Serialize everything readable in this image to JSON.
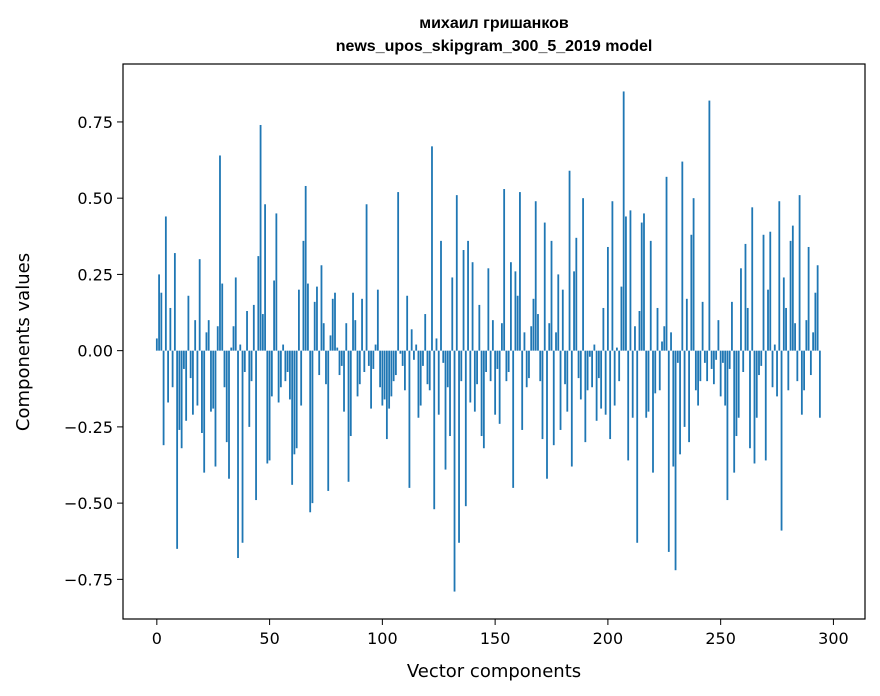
{
  "chart_data": {
    "type": "bar",
    "title": "михаил гришанков",
    "subtitle": "news_upos_skipgram_300_5_2019 model",
    "xlabel": "Vector components",
    "ylabel": "Components values",
    "xlim": [
      -15,
      314
    ],
    "ylim": [
      -0.88,
      0.94
    ],
    "xticks": [
      0,
      50,
      100,
      150,
      200,
      250,
      300
    ],
    "xtick_labels": [
      "0",
      "50",
      "100",
      "150",
      "200",
      "250",
      "300"
    ],
    "yticks": [
      -0.75,
      -0.5,
      -0.25,
      0.0,
      0.25,
      0.5,
      0.75
    ],
    "ytick_labels": [
      "−0.75",
      "−0.50",
      "−0.25",
      "0.00",
      "0.25",
      "0.50",
      "0.75"
    ],
    "bar_color": "#1f77b4",
    "values": [
      0.04,
      0.25,
      0.19,
      -0.31,
      0.44,
      -0.17,
      0.14,
      -0.12,
      0.32,
      -0.65,
      -0.26,
      -0.32,
      -0.06,
      -0.23,
      0.18,
      -0.09,
      -0.21,
      0.1,
      -0.18,
      0.3,
      -0.27,
      -0.4,
      0.06,
      0.1,
      -0.2,
      -0.19,
      -0.38,
      0.08,
      0.64,
      0.22,
      -0.12,
      -0.3,
      -0.42,
      0.01,
      0.08,
      0.24,
      -0.68,
      0.02,
      -0.63,
      -0.07,
      0.13,
      -0.25,
      -0.1,
      0.15,
      -0.49,
      0.31,
      0.74,
      0.12,
      0.48,
      -0.37,
      -0.36,
      -0.15,
      0.23,
      0.45,
      -0.17,
      -0.12,
      0.02,
      -0.1,
      -0.07,
      -0.16,
      -0.44,
      -0.34,
      -0.32,
      0.2,
      -0.18,
      0.36,
      0.54,
      0.22,
      -0.53,
      -0.5,
      0.16,
      0.21,
      -0.08,
      0.28,
      0.09,
      -0.11,
      -0.46,
      0.05,
      0.17,
      0.19,
      0.01,
      -0.08,
      -0.05,
      -0.2,
      0.09,
      -0.43,
      -0.28,
      0.19,
      0.1,
      -0.15,
      -0.11,
      0.17,
      -0.07,
      0.48,
      -0.05,
      -0.19,
      -0.06,
      0.02,
      0.2,
      -0.12,
      -0.18,
      -0.16,
      -0.29,
      -0.19,
      -0.15,
      -0.1,
      -0.08,
      0.52,
      -0.01,
      -0.05,
      -0.13,
      0.18,
      -0.45,
      0.07,
      -0.03,
      0.02,
      -0.22,
      -0.18,
      -0.05,
      0.12,
      -0.11,
      -0.13,
      0.67,
      -0.52,
      0.04,
      -0.21,
      0.36,
      -0.04,
      -0.39,
      -0.12,
      -0.28,
      0.24,
      -0.79,
      0.51,
      -0.63,
      -0.1,
      0.33,
      -0.51,
      0.36,
      -0.17,
      0.29,
      -0.2,
      -0.11,
      0.15,
      -0.28,
      -0.32,
      -0.07,
      0.27,
      -0.1,
      0.1,
      -0.21,
      -0.06,
      -0.24,
      0.09,
      0.53,
      -0.1,
      -0.07,
      0.29,
      -0.45,
      0.26,
      0.18,
      0.52,
      -0.26,
      0.06,
      -0.12,
      -0.09,
      0.08,
      0.17,
      0.49,
      0.12,
      -0.1,
      -0.29,
      0.42,
      -0.42,
      0.09,
      0.36,
      -0.31,
      0.06,
      0.25,
      -0.26,
      0.2,
      -0.11,
      -0.2,
      0.59,
      -0.38,
      0.26,
      0.37,
      -0.09,
      -0.16,
      0.5,
      -0.3,
      -0.13,
      -0.02,
      -0.12,
      0.02,
      -0.23,
      -0.09,
      -0.19,
      0.14,
      -0.21,
      0.34,
      -0.29,
      0.49,
      -0.18,
      0.01,
      -0.1,
      0.21,
      0.85,
      0.44,
      -0.36,
      0.46,
      -0.22,
      0.08,
      -0.63,
      0.13,
      0.42,
      0.45,
      -0.22,
      -0.2,
      0.36,
      -0.4,
      -0.14,
      0.14,
      -0.13,
      0.03,
      0.08,
      0.57,
      -0.66,
      0.06,
      -0.38,
      -0.72,
      -0.04,
      -0.34,
      0.62,
      -0.25,
      0.17,
      -0.3,
      0.38,
      0.5,
      -0.13,
      -0.18,
      -0.1,
      0.16,
      -0.04,
      -0.1,
      0.82,
      -0.06,
      -0.11,
      -0.03,
      0.1,
      -0.15,
      -0.04,
      -0.18,
      -0.49,
      -0.06,
      0.16,
      -0.4,
      -0.28,
      -0.22,
      0.27,
      -0.07,
      0.35,
      0.14,
      -0.32,
      0.47,
      -0.37,
      -0.22,
      -0.08,
      -0.05,
      0.38,
      -0.36,
      0.2,
      0.39,
      -0.12,
      0.02,
      -0.15,
      0.49,
      -0.59,
      0.24,
      0.14,
      -0.13,
      0.36,
      0.41,
      0.09,
      -0.1,
      0.51,
      -0.21,
      -0.13,
      0.1,
      0.34,
      -0.08,
      0.06,
      0.19,
      0.28,
      -0.22
    ]
  }
}
